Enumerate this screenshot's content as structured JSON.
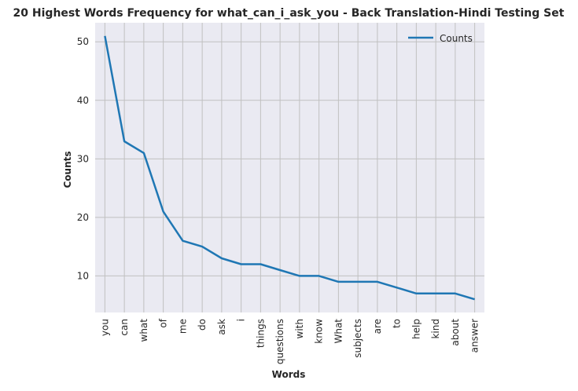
{
  "chart_data": {
    "type": "line",
    "title": "20 Highest Words Frequency for what_can_i_ask_you - Back Translation-Hindi Testing Set",
    "xlabel": "Words",
    "ylabel": "Counts",
    "categories": [
      "you",
      "can",
      "what",
      "of",
      "me",
      "do",
      "ask",
      "i",
      "things",
      "questions",
      "with",
      "know",
      "What",
      "subjects",
      "are",
      "to",
      "help",
      "kind",
      "about",
      "answer"
    ],
    "series": [
      {
        "name": "Counts",
        "values": [
          51,
          33,
          31,
          21,
          16,
          15,
          13,
          12,
          12,
          11,
          10,
          10,
          9,
          9,
          9,
          8,
          7,
          7,
          7,
          6
        ]
      }
    ],
    "ylim": [
      3.75,
      53.25
    ],
    "yticks": [
      10,
      20,
      30,
      40,
      50
    ],
    "grid": true,
    "legend_position": "top-right",
    "colors": {
      "line": "#1f77b4",
      "plot_bg": "#eaeaf2",
      "grid": "#c0c0c0"
    }
  }
}
